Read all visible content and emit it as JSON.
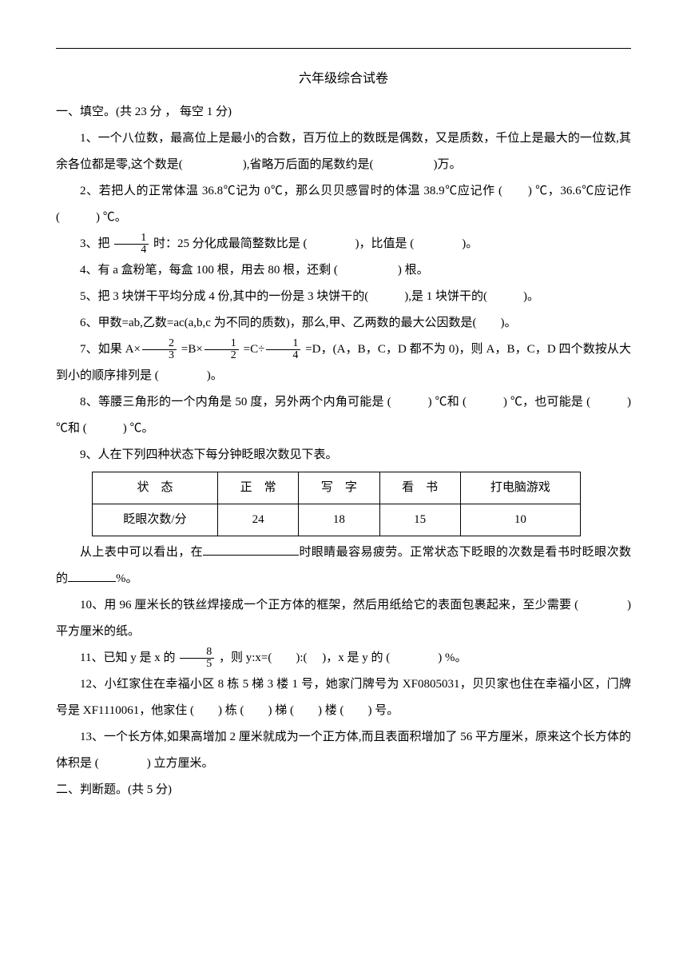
{
  "title": "六年级综合试卷",
  "section1": {
    "header": "一、填空。(共 23 分 ， 每空 1 分)",
    "q1": "1、一个八位数，最高位上是最小的合数，百万位上的数既是偶数，又是质数，千位上是最大的一位数,其余各位都是零,这个数是(　　　　　),省略万后面的尾数约是(　　　　　)万。",
    "q2": "2、若把人的正常体温 36.8℃记为 0℃，那么贝贝感冒时的体温 38.9℃应记作 (　　) ℃，36.6℃应记作 (　　　) ℃。",
    "q3_a": "3、把 ",
    "q3_b": " 时：25 分化成最简整数比是 (　　　　)，比值是 (　　　　)。",
    "q4": "4、有 a 盒粉笔，每盒 100 根，用去 80 根，还剩 (　　　　　) 根。",
    "q5": "5、把 3 块饼干平均分成 4 份,其中的一份是 3 块饼干的(　　　),是 1 块饼干的(　　　)。",
    "q6": "6、甲数=ab,乙数=ac(a,b,c 为不同的质数)，那么,甲、乙两数的最大公因数是(　　)。",
    "q7_a": "7、如果 A×",
    "q7_b": " =B×",
    "q7_c": " =C÷",
    "q7_d": " =D，(A，B，C，D 都不为 0)，则 A，B，C，D 四个数按从大到小的顺序排列是 (　　　　)。",
    "q8": "8、等腰三角形的一个内角是 50 度，另外两个内角可能是 (　　　) ℃和 (　　　) ℃，也可能是 (　　　) ℃和 (　　　) ℃。",
    "q9_intro": "9、人在下列四种状态下每分钟眨眼次数见下表。",
    "q9_after_a": "从上表中可以看出，在",
    "q9_after_b": "时眼睛最容易疲劳。正常状态下眨眼的次数是看书时眨眼次数的",
    "q9_after_c": "%。",
    "q10": "10、用 96 厘米长的铁丝焊接成一个正方体的框架，然后用纸给它的表面包裹起来，至少需要 (　　　　) 平方厘米的纸。",
    "q11_a": "11、已知 y 是 x 的 ",
    "q11_b": " ，则 y:x=(　　):( 　)，x 是 y 的 (　　　　) %。",
    "q12": "12、小红家住在幸福小区 8 栋 5 梯 3 楼 1 号，她家门牌号为 XF0805031，贝贝家也住在幸福小区，门牌号是 XF1110061，他家住 (　　) 栋 (　　) 梯 (　　) 楼 (　　) 号。",
    "q13": "13、一个长方体,如果高增加 2 厘米就成为一个正方体,而且表面积增加了 56 平方厘米，原来这个长方体的体积是 (　　　　) 立方厘米。"
  },
  "section2": {
    "header": "二、判断题。(共 5 分)"
  },
  "table": {
    "headers": [
      "状　态",
      "正　常",
      "写　字",
      "看　书",
      "打电脑游戏"
    ],
    "row_label": "眨眼次数/分",
    "values": [
      "24",
      "18",
      "15",
      "10"
    ]
  },
  "fractions": {
    "f1_4": {
      "num": "1",
      "den": "4"
    },
    "f2_3": {
      "num": "2",
      "den": "3"
    },
    "f1_2": {
      "num": "1",
      "den": "2"
    },
    "f1_4b": {
      "num": "1",
      "den": "4"
    },
    "f8_5": {
      "num": "8",
      "den": "5"
    }
  }
}
